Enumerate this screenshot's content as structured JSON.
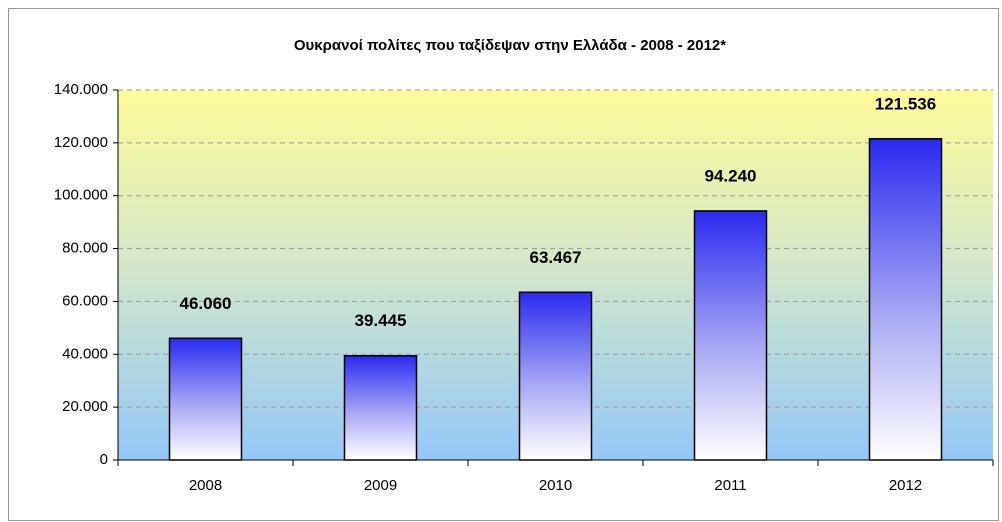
{
  "chart_data": {
    "type": "bar",
    "title": "Ουκρανοί πολίτες που ταξίδεψαν στην Ελλάδα  -  2008 - 2012*",
    "categories": [
      "2008",
      "2009",
      "2010",
      "2011",
      "2012"
    ],
    "values": [
      46060,
      39445,
      63467,
      94240,
      121536
    ],
    "value_labels": [
      "46.060",
      "39.445",
      "63.467",
      "94.240",
      "121.536"
    ],
    "color": "#2a2af0",
    "ylim": [
      0,
      140000
    ],
    "yticks": [
      0,
      {
        "value": 20000,
        "label": "20.000"
      },
      {
        "value": 40000,
        "label": "40.000"
      },
      {
        "value": 60000,
        "label": "60.000"
      },
      {
        "value": 80000,
        "label": "80.000"
      },
      {
        "value": 100000,
        "label": "100.000"
      },
      {
        "value": 120000,
        "label": "120.000"
      },
      {
        "value": 140000,
        "label": "140.000"
      }
    ],
    "grid": true
  }
}
